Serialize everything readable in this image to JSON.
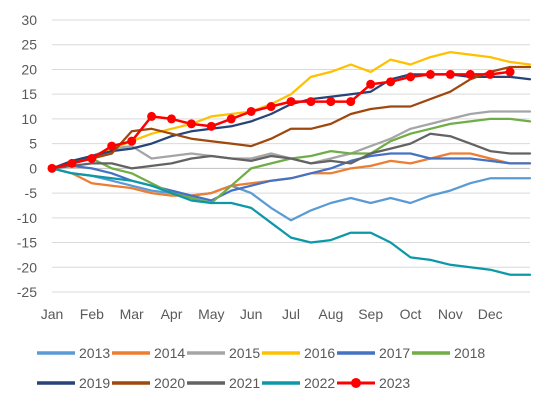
{
  "chart_data": {
    "type": "line",
    "title": "",
    "xlabel": "",
    "ylabel": "",
    "ylim": [
      -25,
      30
    ],
    "yticks": [
      -25,
      -20,
      -15,
      -10,
      -5,
      0,
      5,
      10,
      15,
      20,
      25,
      30
    ],
    "xlim": [
      0,
      12
    ],
    "xticks": [
      {
        "label": "Jan",
        "x": 0
      },
      {
        "label": "Feb",
        "x": 1
      },
      {
        "label": "Mar",
        "x": 2
      },
      {
        "label": "Apr",
        "x": 3
      },
      {
        "label": "May",
        "x": 4
      },
      {
        "label": "Jun",
        "x": 5
      },
      {
        "label": "Jul",
        "x": 6
      },
      {
        "label": "Aug",
        "x": 7
      },
      {
        "label": "Sep",
        "x": 8
      },
      {
        "label": "Oct",
        "x": 9
      },
      {
        "label": "Nov",
        "x": 10
      },
      {
        "label": "Dec",
        "x": 11
      }
    ],
    "grid": "horizontal",
    "legend_position": "bottom",
    "x": [
      0,
      0.5,
      1,
      1.5,
      2,
      2.5,
      3,
      3.5,
      4,
      4.5,
      5,
      5.5,
      6,
      6.5,
      7,
      7.5,
      8,
      8.5,
      9,
      9.5,
      10,
      10.5,
      11,
      11.5,
      12
    ],
    "series": [
      {
        "name": "2013",
        "color": "#5b9bd5",
        "values": [
          0,
          -1,
          -1.5,
          -2.5,
          -3.5,
          -4.5,
          -5,
          -5.5,
          -5,
          -3.5,
          -5,
          -8,
          -10.5,
          -8.5,
          -7,
          -6,
          -7,
          -6,
          -7,
          -5.5,
          -4.5,
          -3,
          -2,
          -2,
          -2
        ]
      },
      {
        "name": "2014",
        "color": "#ed7d31",
        "values": [
          0,
          -1,
          -3,
          -3.5,
          -4,
          -5,
          -5.5,
          -5.5,
          -5,
          -3.5,
          -3,
          -2.5,
          -2,
          -1,
          -1,
          0,
          0.5,
          1.5,
          1,
          2,
          3,
          3,
          2,
          1,
          1
        ]
      },
      {
        "name": "2015",
        "color": "#a5a5a5",
        "values": [
          0,
          1,
          2.5,
          4,
          4.5,
          2,
          2.5,
          3,
          2.5,
          2,
          2,
          3,
          2,
          1,
          2,
          3,
          4.5,
          6,
          8,
          9,
          10,
          11,
          11.5,
          11.5,
          11.5
        ]
      },
      {
        "name": "2016",
        "color": "#ffc000",
        "values": [
          0,
          1.5,
          2,
          4,
          5.5,
          7,
          8,
          9,
          10.5,
          11,
          11.5,
          13,
          15,
          18.5,
          19.5,
          21,
          19.5,
          22,
          21,
          22.5,
          23.5,
          23,
          22.5,
          21.5,
          21
        ]
      },
      {
        "name": "2017",
        "color": "#4472c4",
        "values": [
          0,
          0.5,
          0,
          -1,
          -2.5,
          -3.5,
          -4.5,
          -5.5,
          -6.5,
          -4.5,
          -3.5,
          -2.5,
          -2,
          -1,
          0,
          1.5,
          2.5,
          3,
          3,
          2,
          2,
          2,
          1.5,
          1,
          1
        ]
      },
      {
        "name": "2018",
        "color": "#70ad47",
        "values": [
          0,
          1,
          2,
          0,
          -1,
          -3,
          -5,
          -6,
          -7,
          -3.5,
          0,
          1,
          2,
          2.5,
          3.5,
          3,
          3,
          5.5,
          7,
          8,
          9,
          9.5,
          10,
          10,
          9.5
        ]
      },
      {
        "name": "2019",
        "color": "#264478",
        "values": [
          0,
          1.5,
          2.5,
          3.5,
          4,
          5,
          6.5,
          7.5,
          8,
          8.5,
          9.5,
          11,
          13,
          14,
          14.5,
          15,
          15.5,
          18,
          19,
          19,
          19,
          18.5,
          18.5,
          18.5,
          18
        ]
      },
      {
        "name": "2020",
        "color": "#9e480e",
        "values": [
          0,
          1,
          2,
          3,
          7.5,
          8,
          7,
          6,
          5.5,
          5,
          4.5,
          6,
          8,
          8,
          9,
          11,
          12,
          12.5,
          12.5,
          14,
          15.5,
          18,
          19.5,
          20.5,
          20.5
        ]
      },
      {
        "name": "2021",
        "color": "#636363",
        "values": [
          0,
          0.5,
          1,
          1,
          0,
          0.5,
          1,
          2,
          2.5,
          2,
          1.5,
          2.5,
          2,
          1,
          1.5,
          1,
          3,
          4,
          5,
          7,
          6.5,
          5,
          3.5,
          3,
          3
        ]
      },
      {
        "name": "2022",
        "color": "#0d98a8",
        "values": [
          0,
          -1,
          -1.5,
          -2,
          -2.5,
          -3.5,
          -5,
          -6.5,
          -7,
          -7,
          -8,
          -11,
          -14,
          -15,
          -14.5,
          -13,
          -13,
          -15,
          -18,
          -18.5,
          -19.5,
          -20,
          -20.5,
          -21.5,
          -21.5
        ]
      },
      {
        "name": "2023",
        "color": "#ff0000",
        "marker": true,
        "values": [
          0,
          1,
          2,
          4.5,
          5.5,
          10.5,
          10,
          9,
          8.5,
          10,
          11.5,
          12.5,
          13.5,
          13.5,
          13.5,
          13.5,
          17,
          17.5,
          18.5,
          19,
          19,
          19,
          19,
          19.5,
          null
        ]
      }
    ]
  }
}
